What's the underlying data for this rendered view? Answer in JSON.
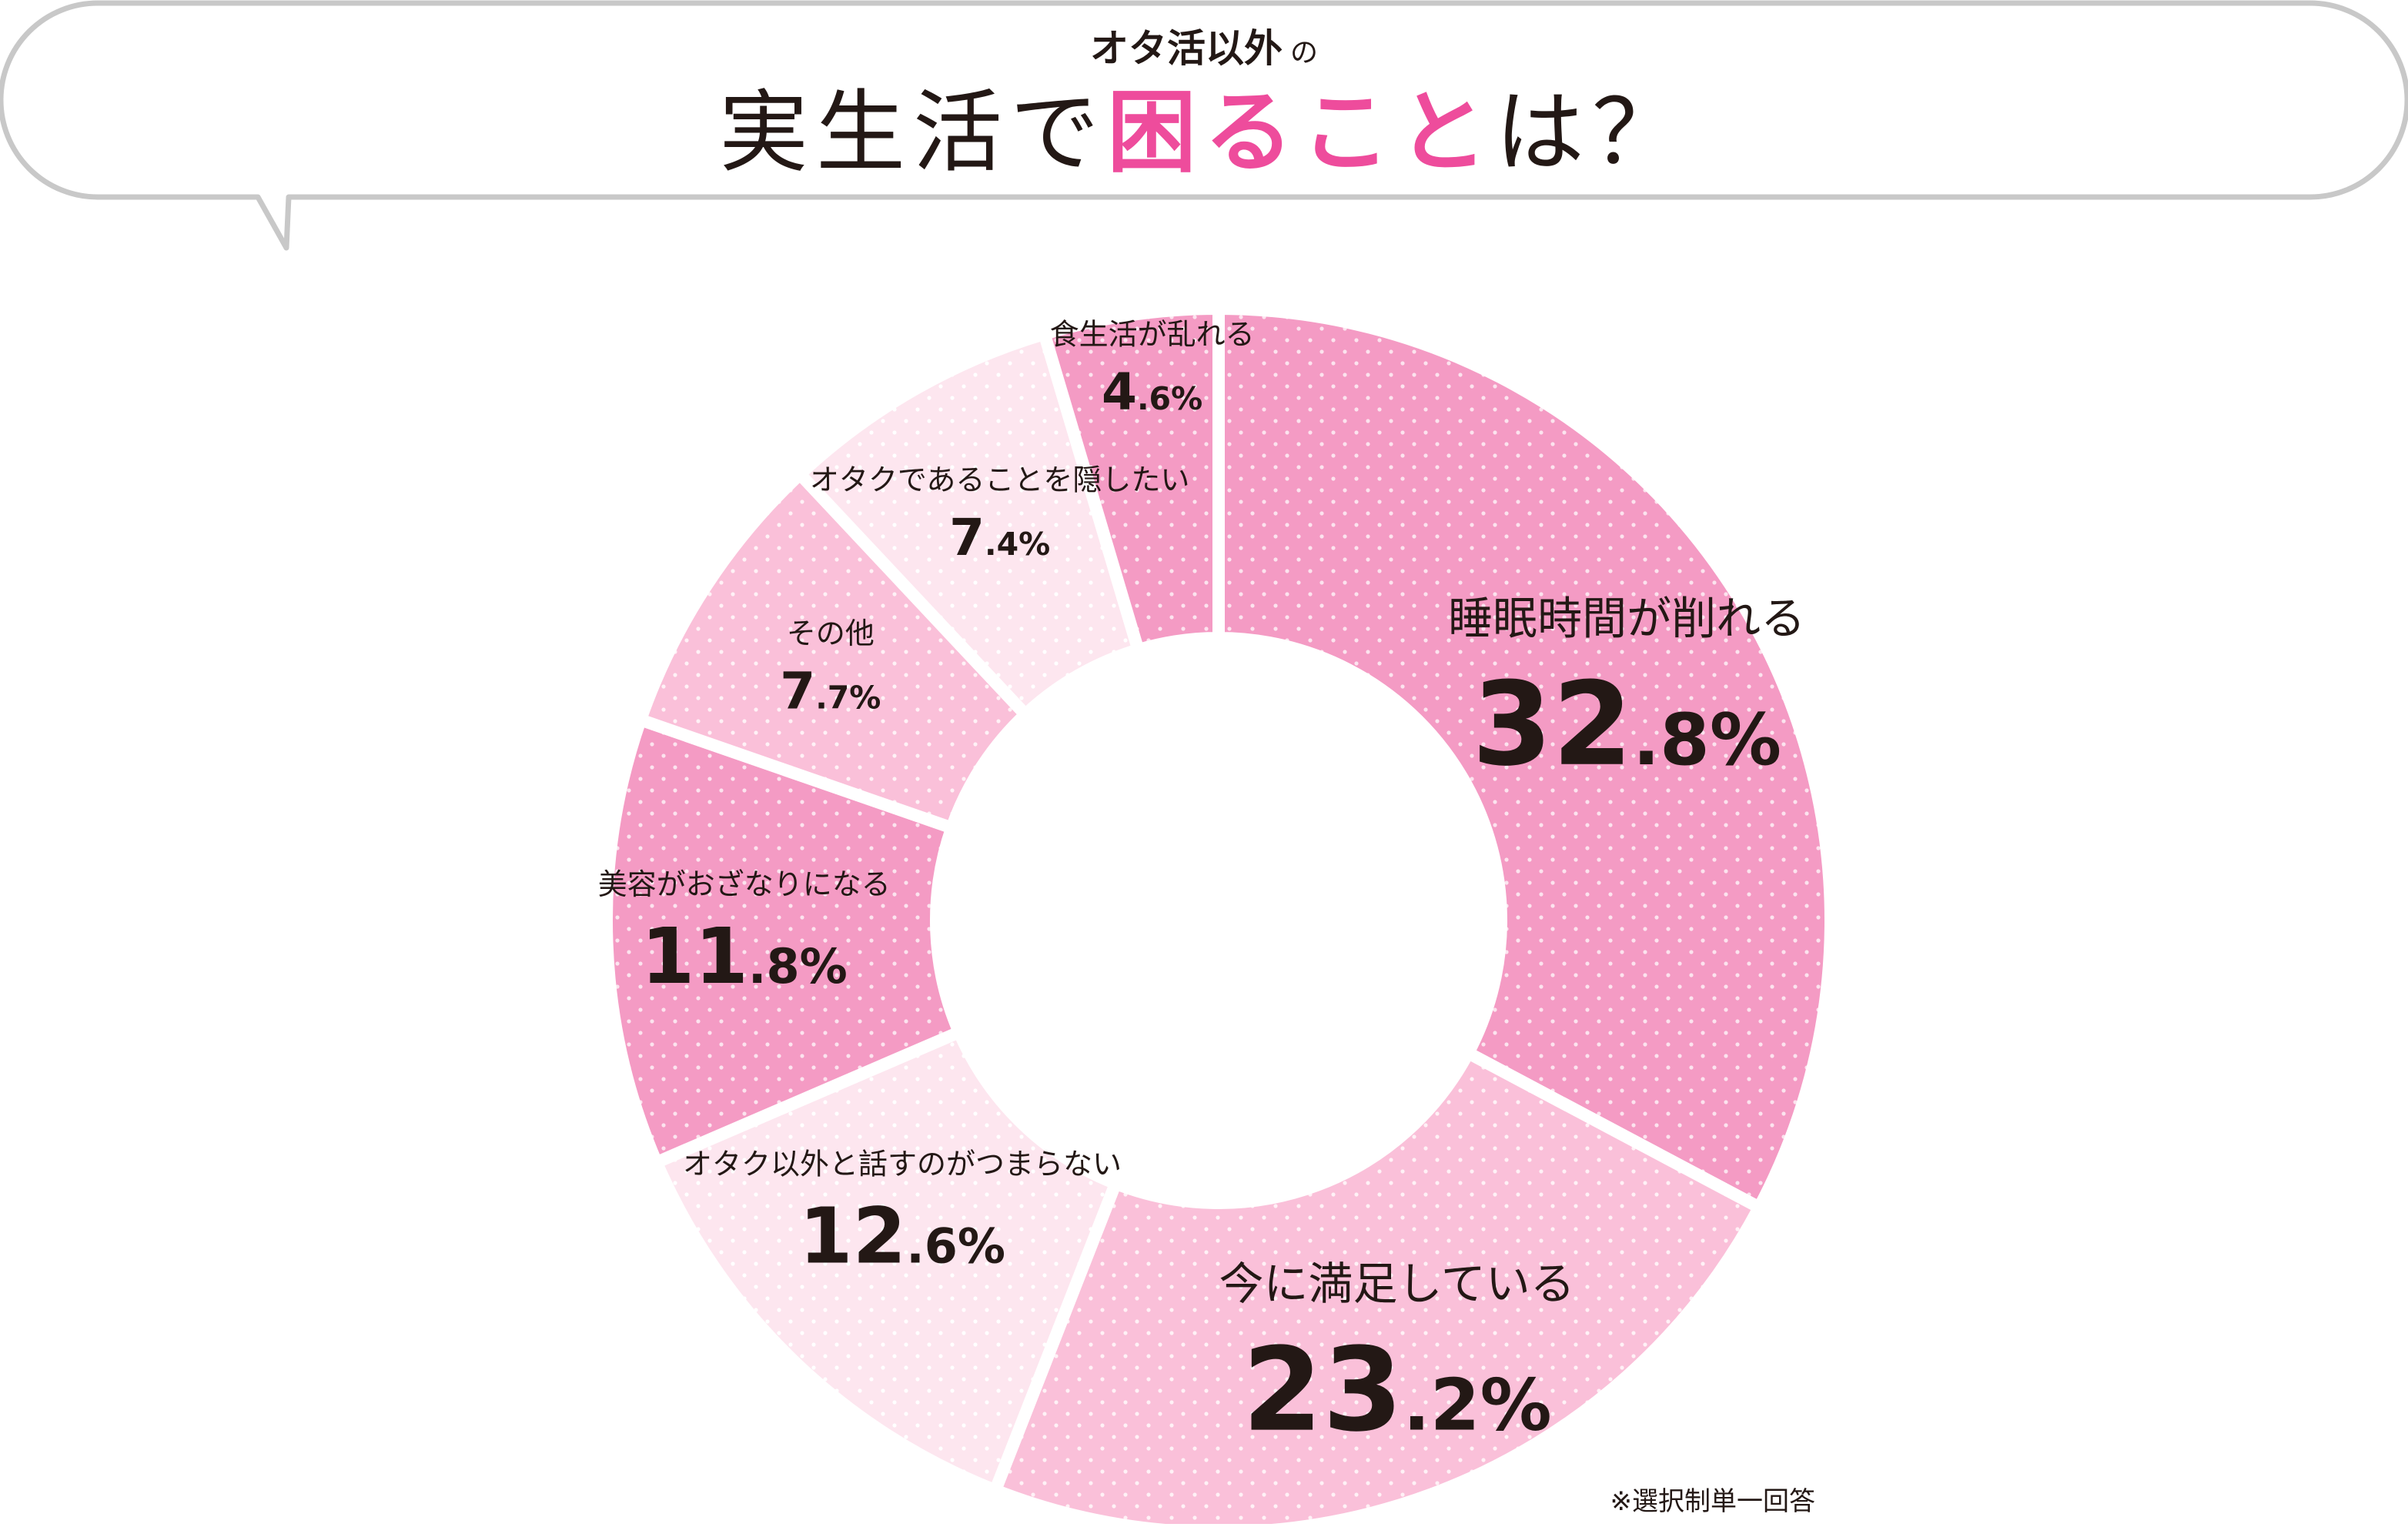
{
  "header": {
    "subtitle": "オタ活以外",
    "subtitle_particle": "の",
    "title_before": "実生活で",
    "title_highlight": "困ること",
    "title_after": "は？"
  },
  "colors": {
    "highlight": "#EE4C9C",
    "slice_dark": "#F49BC4",
    "slice_mid": "#FAC0D9",
    "slice_light": "#FDE6EF",
    "bubble_border": "#C8C8C8",
    "text": "#231815"
  },
  "chart_data": {
    "type": "pie",
    "donut": true,
    "start": "12 o'clock, clockwise",
    "slices": [
      {
        "label": "睡眠時間が削れる",
        "value": 32.8,
        "int": "32",
        "frac": ".8%",
        "shade": "dark"
      },
      {
        "label": "今に満足している",
        "value": 23.2,
        "int": "23",
        "frac": ".2%",
        "shade": "mid"
      },
      {
        "label": "オタク以外と話すのがつまらない",
        "value": 12.6,
        "int": "12",
        "frac": ".6%",
        "shade": "light"
      },
      {
        "label": "美容がおざなりになる",
        "value": 11.8,
        "int": "11",
        "frac": ".8%",
        "shade": "dark"
      },
      {
        "label": "その他",
        "value": 7.7,
        "int": "7",
        "frac": ".7%",
        "shade": "mid"
      },
      {
        "label": "オタクであることを隠したい",
        "value": 7.4,
        "int": "7",
        "frac": ".4%",
        "shade": "light"
      },
      {
        "label": "食生活が乱れる",
        "value": 4.6,
        "int": "4",
        "frac": ".6%",
        "shade": "dark"
      }
    ]
  },
  "footnote": "※選択制単一回答"
}
